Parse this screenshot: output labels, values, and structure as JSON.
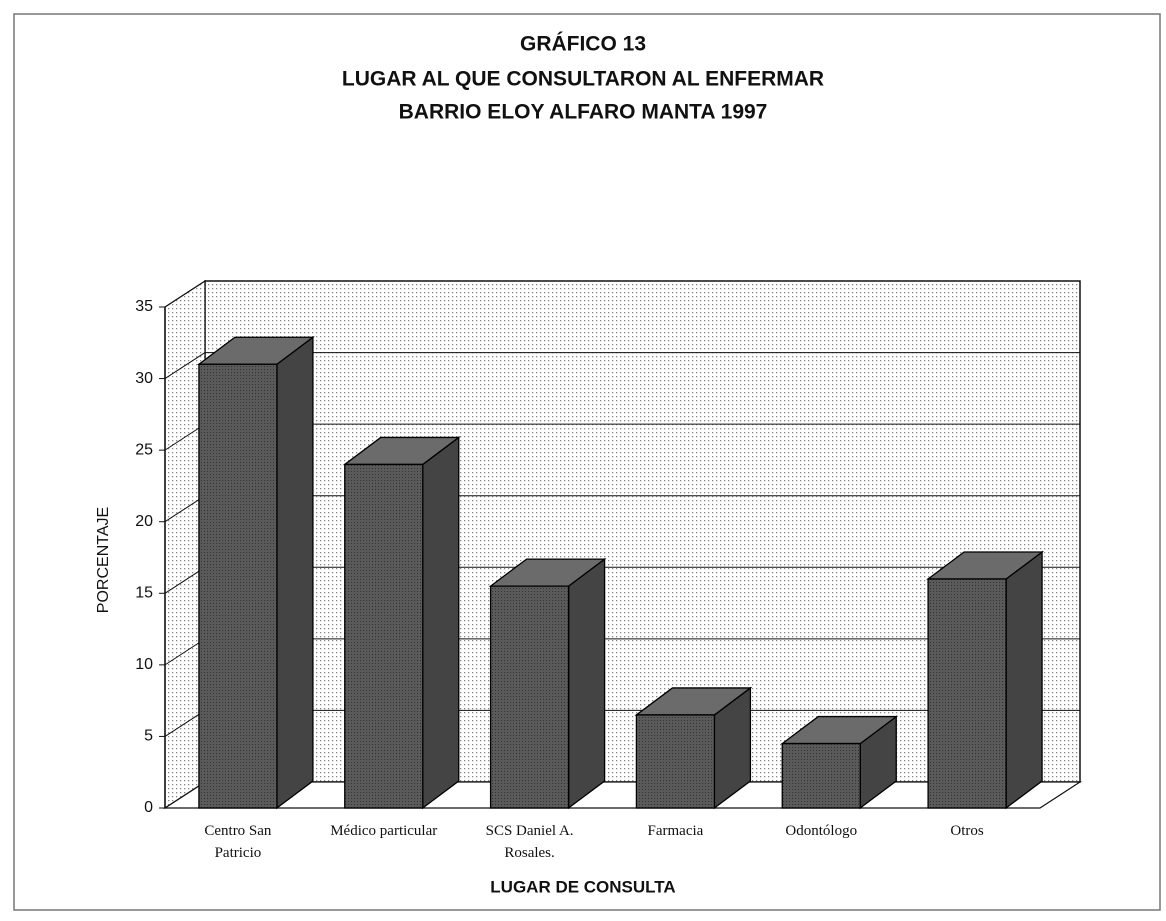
{
  "chart_data": {
    "type": "bar3d",
    "title": [
      "GRÁFICO 13",
      "LUGAR AL QUE CONSULTARON AL ENFERMAR",
      "BARRIO ELOY ALFARO MANTA 1997"
    ],
    "xlabel": "LUGAR DE CONSULTA",
    "ylabel": "PORCENTAJE",
    "categories": [
      "Centro San Patricio",
      "Médico particular",
      "SCS Daniel A. Rosales.",
      "Farmacia",
      "Odontólogo",
      "Otros"
    ],
    "values": [
      31,
      24,
      15.5,
      6.5,
      4.5,
      16
    ],
    "color": "#555555",
    "ylim": [
      0,
      35
    ],
    "yticks": [
      0,
      5,
      10,
      15,
      20,
      25,
      30,
      35
    ],
    "grid": true
  }
}
